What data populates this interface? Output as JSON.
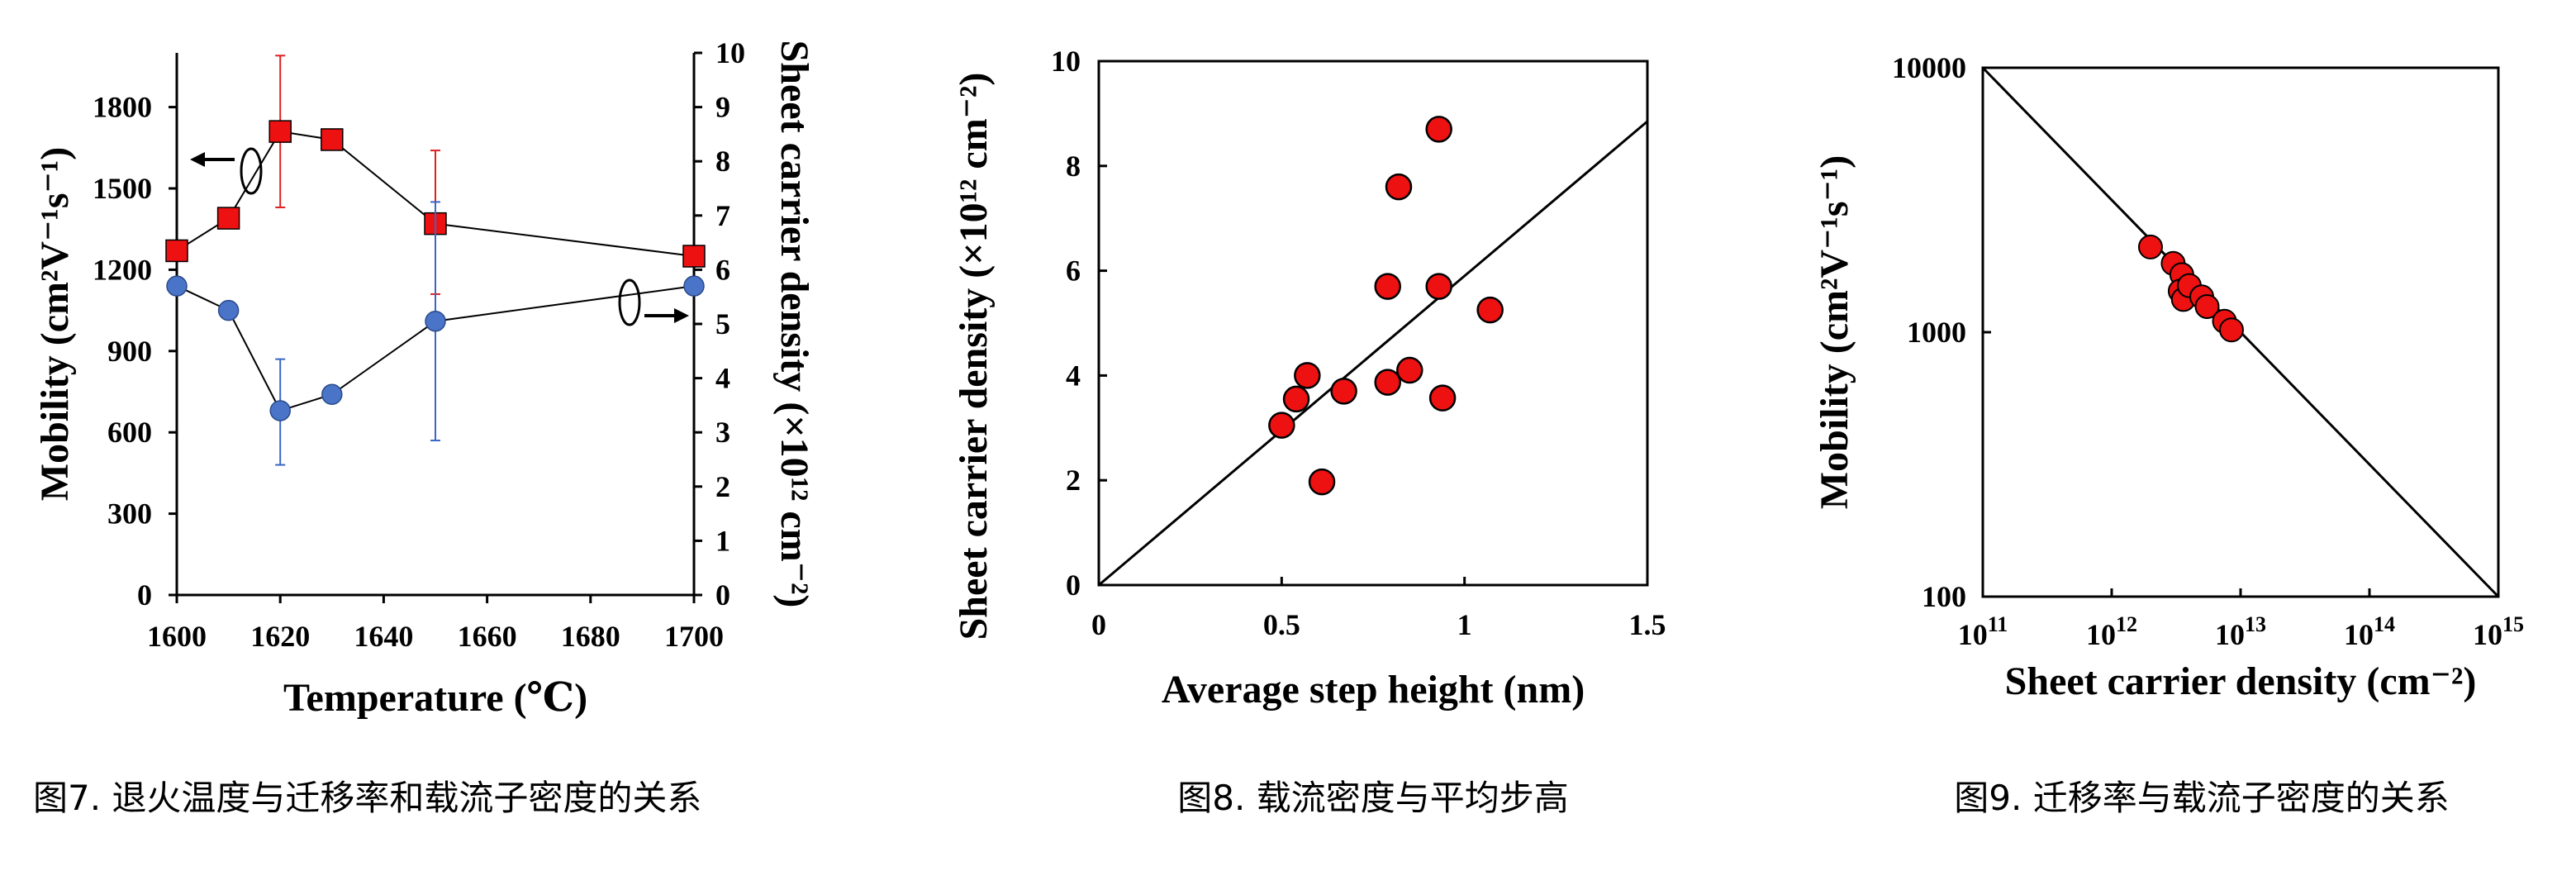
{
  "chart_data": [
    {
      "type": "line",
      "x": [
        1600,
        1610,
        1620,
        1630,
        1650,
        1700
      ],
      "xlim": [
        1600,
        1700
      ],
      "xticks": [
        "1600",
        "1620",
        "1640",
        "1660",
        "1680",
        "1700"
      ],
      "xticks_values": [
        1600,
        1620,
        1640,
        1660,
        1680,
        1700
      ],
      "xlabel": "Temperature (℃)",
      "ylabel": "Mobility (cm²V⁻¹s⁻¹)",
      "ylim": [
        0,
        2000
      ],
      "yticks": [
        "0",
        "300",
        "600",
        "900",
        "1200",
        "1500",
        "1800"
      ],
      "yticks_values": [
        0,
        300,
        600,
        900,
        1200,
        1500,
        1800
      ],
      "y2label": "Sheet carrier density (×10¹² cm⁻²)",
      "y2lim": [
        0,
        10
      ],
      "y2ticks": [
        "0",
        "1",
        "2",
        "3",
        "4",
        "5",
        "6",
        "7",
        "8",
        "9",
        "10"
      ],
      "y2ticks_values": [
        0,
        1,
        2,
        3,
        4,
        5,
        6,
        7,
        8,
        9,
        10
      ],
      "series": [
        {
          "axis": "left",
          "marker": "square",
          "color": "#ee1111",
          "values": [
            1270,
            1390,
            1710,
            1680,
            1370,
            1250
          ],
          "error": [
            null,
            null,
            {
              "low": 1430,
              "high": 1990
            },
            null,
            {
              "low": 1110,
              "high": 1640
            },
            null
          ]
        },
        {
          "axis": "right",
          "marker": "circle",
          "color": "#4a74c8",
          "values": [
            5.7,
            5.25,
            3.4,
            3.7,
            5.05,
            5.7
          ],
          "error": [
            null,
            null,
            {
              "low": 2.4,
              "high": 4.35
            },
            null,
            {
              "low": 2.85,
              "high": 7.25
            },
            null
          ]
        }
      ],
      "caption": "图7. 退火温度与迁移率和载流子密度的关系"
    },
    {
      "type": "scatter",
      "points": [
        {
          "x": 0.5,
          "y": 3.05
        },
        {
          "x": 0.54,
          "y": 3.55
        },
        {
          "x": 0.57,
          "y": 4.0
        },
        {
          "x": 0.61,
          "y": 1.97
        },
        {
          "x": 0.67,
          "y": 3.7
        },
        {
          "x": 0.79,
          "y": 5.7
        },
        {
          "x": 0.79,
          "y": 3.87
        },
        {
          "x": 0.82,
          "y": 7.6
        },
        {
          "x": 0.85,
          "y": 4.1
        },
        {
          "x": 0.93,
          "y": 8.7
        },
        {
          "x": 0.93,
          "y": 5.7
        },
        {
          "x": 0.94,
          "y": 3.57
        },
        {
          "x": 1.07,
          "y": 5.25
        }
      ],
      "trendline": {
        "x": [
          0,
          1.5
        ],
        "y": [
          0,
          8.85
        ]
      },
      "xlim": [
        0,
        1.5
      ],
      "ylim": [
        0,
        10
      ],
      "xticks": [
        "0",
        "0.5",
        "1",
        "1.5"
      ],
      "xticks_values": [
        0,
        0.5,
        1,
        1.5
      ],
      "yticks": [
        "0",
        "2",
        "4",
        "6",
        "8",
        "10"
      ],
      "yticks_values": [
        0,
        2,
        4,
        6,
        8,
        10
      ],
      "xlabel": "Average step height (nm)",
      "ylabel": "Sheet carrier density (×10¹² cm⁻²)",
      "marker_color": "#ee1111",
      "caption": "图8. 载流密度与平均步高"
    },
    {
      "type": "scatter",
      "xscale": "log",
      "yscale": "log",
      "points": [
        {
          "x": 2000000000000.0,
          "y": 2100
        },
        {
          "x": 3000000000000.0,
          "y": 1820
        },
        {
          "x": 3500000000000.0,
          "y": 1650
        },
        {
          "x": 3400000000000.0,
          "y": 1430
        },
        {
          "x": 3600000000000.0,
          "y": 1330
        },
        {
          "x": 4000000000000.0,
          "y": 1500
        },
        {
          "x": 5000000000000.0,
          "y": 1360
        },
        {
          "x": 5500000000000.0,
          "y": 1250
        },
        {
          "x": 7500000000000.0,
          "y": 1100
        },
        {
          "x": 8500000000000.0,
          "y": 1020
        }
      ],
      "trendline": {
        "x": [
          100000000000.0,
          1000000000000000.0
        ],
        "y": [
          10000,
          100
        ]
      },
      "xlim": [
        100000000000.0,
        1000000000000000.0
      ],
      "ylim": [
        100,
        10000
      ],
      "xticks": [
        {
          "base": "10",
          "exp": "11"
        },
        {
          "base": "10",
          "exp": "12"
        },
        {
          "base": "10",
          "exp": "13"
        },
        {
          "base": "10",
          "exp": "14"
        },
        {
          "base": "10",
          "exp": "15"
        }
      ],
      "xticks_values": [
        100000000000.0,
        1000000000000.0,
        10000000000000.0,
        100000000000000.0,
        1000000000000000.0
      ],
      "yticks": [
        "100",
        "1000",
        "10000"
      ],
      "yticks_values": [
        100,
        1000,
        10000
      ],
      "xlabel": "Sheet carrier density (cm⁻²)",
      "ylabel": "Mobility (cm²V⁻¹s⁻¹)",
      "marker_color": "#ee1111",
      "caption": "图9. 迁移率与载流子密度的关系"
    }
  ]
}
